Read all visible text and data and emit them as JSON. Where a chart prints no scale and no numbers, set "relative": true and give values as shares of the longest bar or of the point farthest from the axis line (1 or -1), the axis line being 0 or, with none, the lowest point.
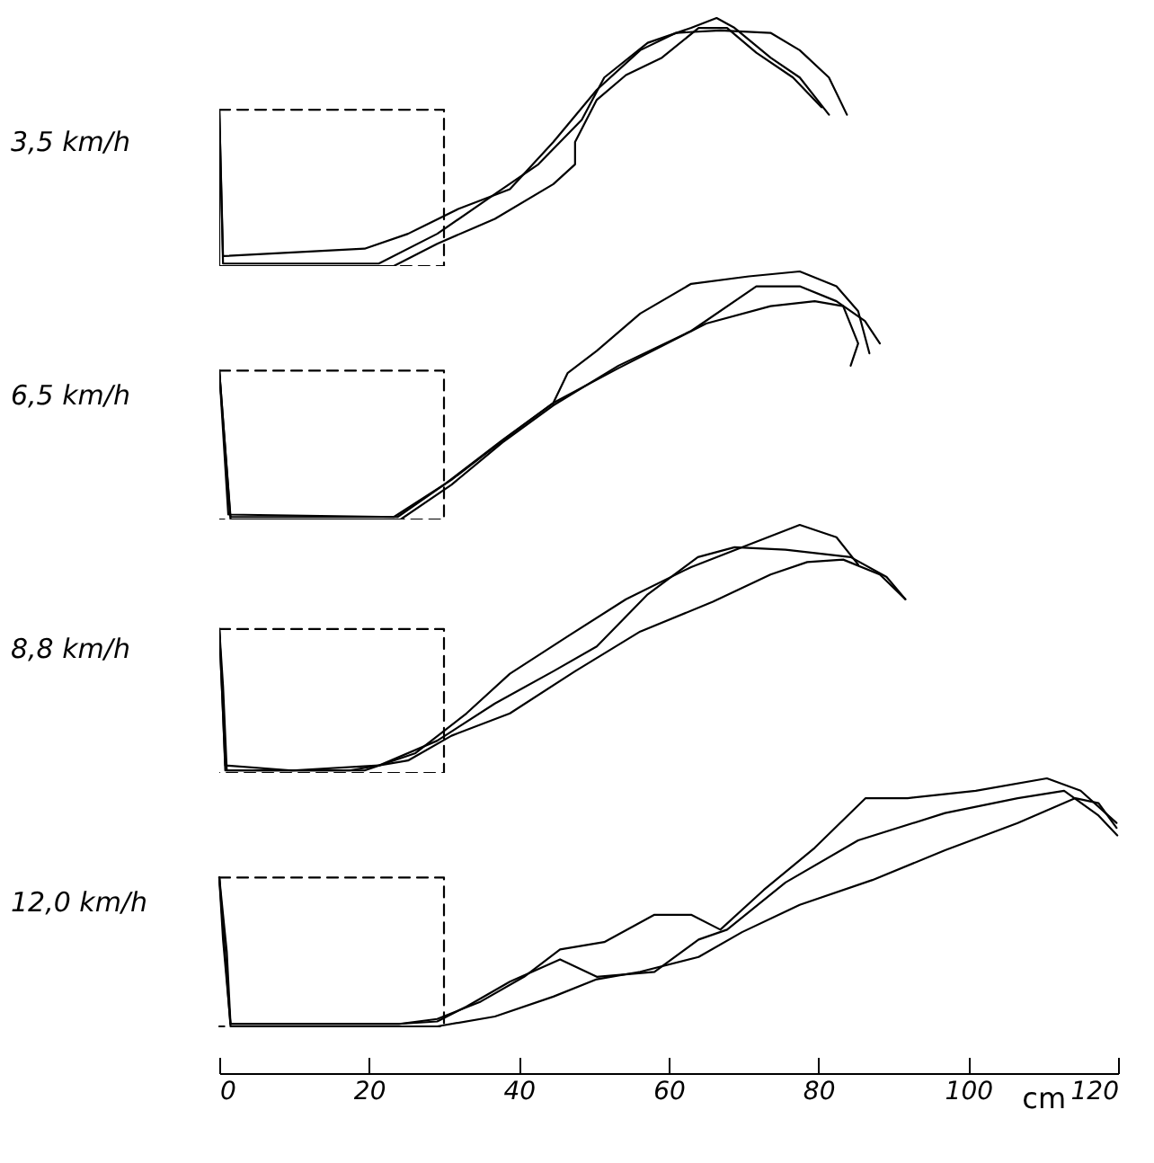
{
  "chart_data": [
    {
      "type": "line",
      "title": "3,5 km/h",
      "relative": true,
      "xlim": [
        0,
        120
      ],
      "xticks": [
        0,
        20,
        40,
        60,
        80,
        100,
        120
      ],
      "tick_labels": false,
      "series": [
        {
          "color": "#000000",
          "x": [
            0,
            0.5,
            21.3,
            29.1,
            36.8,
            42.6,
            48.4,
            51.4,
            57.2,
            63,
            66.4,
            68.8,
            73.6,
            77.5,
            81.4
          ],
          "values": [
            0.63,
            0.01,
            0.01,
            0.13,
            0.29,
            0.41,
            0.59,
            0.76,
            0.9,
            0.96,
            1,
            0.96,
            0.84,
            0.76,
            0.61
          ]
        },
        {
          "color": "#000000",
          "x": [
            0,
            0.5,
            19.4,
            25.2,
            31.9,
            38.8,
            44.6,
            50.4,
            56.2,
            61,
            66.9,
            73.6,
            77.5,
            81.4,
            83.8
          ],
          "values": [
            0.63,
            0.04,
            0.07,
            0.13,
            0.23,
            0.31,
            0.5,
            0.71,
            0.87,
            0.94,
            0.95,
            0.94,
            0.87,
            0.76,
            0.61
          ]
        },
        {
          "color": "#000000",
          "x": [
            0,
            0,
            23.3,
            29.1,
            36.8,
            44.6,
            47.5,
            47.5,
            50.4,
            54.3,
            59.1,
            64,
            67.8,
            71.7,
            76.6,
            80.4
          ],
          "values": [
            0.63,
            0,
            0,
            0.09,
            0.19,
            0.33,
            0.41,
            0.5,
            0.67,
            0.77,
            0.84,
            0.96,
            0.96,
            0.86,
            0.76,
            0.64
          ]
        },
        {
          "color": "#000000",
          "line_style": "dashed",
          "x": [
            0,
            30,
            30,
            0
          ],
          "values": [
            0.63,
            0.63,
            0,
            0
          ]
        }
      ]
    },
    {
      "type": "line",
      "title": "6,5 km/h",
      "relative": true,
      "xlim": [
        0,
        120
      ],
      "xticks": [
        0,
        20,
        40,
        60,
        80,
        100,
        120
      ],
      "tick_labels": false,
      "series": [
        {
          "color": "#000000",
          "x": [
            0,
            1.5,
            23.3,
            31,
            38.8,
            44.6,
            46.5,
            50.4,
            56.2,
            63,
            70.7,
            77.5,
            82.4,
            85.3,
            86.8
          ],
          "values": [
            0.6,
            0.01,
            0.01,
            0.16,
            0.34,
            0.47,
            0.59,
            0.68,
            0.83,
            0.95,
            0.98,
            1,
            0.94,
            0.84,
            0.67
          ]
        },
        {
          "color": "#000000",
          "x": [
            0,
            1.5,
            24.2,
            31,
            37.8,
            44.6,
            53.3,
            63,
            71.7,
            77.5,
            82.4,
            86.2,
            88.2
          ],
          "values": [
            0.6,
            0,
            0,
            0.14,
            0.31,
            0.46,
            0.62,
            0.76,
            0.94,
            0.94,
            0.88,
            0.8,
            0.71
          ]
        },
        {
          "color": "#000000",
          "x": [
            0,
            1.2,
            23.8,
            30,
            37.8,
            44.6,
            53.3,
            65,
            73.6,
            79.5,
            83.3,
            85.3,
            84.3
          ],
          "values": [
            0.6,
            0.02,
            0.01,
            0.14,
            0.32,
            0.47,
            0.61,
            0.79,
            0.86,
            0.88,
            0.86,
            0.71,
            0.62
          ]
        },
        {
          "color": "#000000",
          "line_style": "dashed",
          "x": [
            0,
            30,
            30,
            0
          ],
          "values": [
            0.6,
            0.6,
            0,
            0
          ]
        }
      ]
    },
    {
      "type": "line",
      "title": "8,8 km/h",
      "relative": true,
      "xlim": [
        0,
        120
      ],
      "xticks": [
        0,
        20,
        40,
        60,
        80,
        100,
        120
      ],
      "tick_labels": false,
      "series": [
        {
          "color": "#000000",
          "x": [
            0,
            0.5,
            0.8,
            19.4,
            26.2,
            33,
            38.8,
            46.5,
            54.3,
            63,
            70.7,
            77.5,
            82.4,
            85.3
          ],
          "values": [
            0.58,
            0.24,
            0.01,
            0.01,
            0.08,
            0.24,
            0.4,
            0.55,
            0.7,
            0.83,
            0.92,
            1,
            0.95,
            0.84
          ]
        },
        {
          "color": "#000000",
          "x": [
            0,
            0.8,
            9.7,
            21.3,
            29.1,
            36.8,
            44.6,
            50.4,
            57.2,
            63.9,
            68.8,
            75.6,
            84.3,
            89.1,
            91.6
          ],
          "values": [
            0.58,
            0.03,
            0.01,
            0.03,
            0.13,
            0.28,
            0.41,
            0.51,
            0.72,
            0.87,
            0.91,
            0.9,
            0.87,
            0.79,
            0.7
          ]
        },
        {
          "color": "#000000",
          "x": [
            0,
            0.5,
            1,
            17.4,
            25.2,
            31,
            38.8,
            47.5,
            56.2,
            65.9,
            73.6,
            78.5,
            83.3,
            88.2,
            91.6
          ],
          "values": [
            0.58,
            0.35,
            0.01,
            0.01,
            0.05,
            0.15,
            0.24,
            0.41,
            0.57,
            0.69,
            0.8,
            0.85,
            0.86,
            0.8,
            0.7
          ]
        },
        {
          "color": "#000000",
          "line_style": "dashed",
          "x": [
            0,
            30,
            30,
            0
          ],
          "values": [
            0.58,
            0.58,
            0,
            0
          ]
        }
      ]
    },
    {
      "type": "line",
      "title": "12,0 km/h",
      "relative": true,
      "xlim": [
        0,
        120
      ],
      "xticks": [
        0,
        20,
        40,
        60,
        80,
        100,
        120
      ],
      "tick_labels": "x",
      "xlabel": "cm",
      "series": [
        {
          "color": "#000000",
          "x": [
            0,
            0.5,
            1.5,
            24,
            29.1,
            34.9,
            40.7,
            45.5,
            51.4,
            58.1,
            63,
            66.9,
            72.7,
            79.5,
            86.3,
            91.9,
            101,
            110.5,
            115,
            119.8
          ],
          "values": [
            0.6,
            0.35,
            0.01,
            0.01,
            0.03,
            0.1,
            0.2,
            0.31,
            0.34,
            0.45,
            0.45,
            0.39,
            0.55,
            0.72,
            0.92,
            0.92,
            0.95,
            1,
            0.95,
            0.82
          ]
        },
        {
          "color": "#000000",
          "x": [
            0,
            1,
            1.5,
            24,
            29.1,
            33,
            38.8,
            45.5,
            50.4,
            58.1,
            64,
            67.8,
            75.6,
            85.3,
            96.9,
            106.6,
            112.8,
            117.4,
            119.9
          ],
          "values": [
            0.6,
            0.3,
            0.01,
            0.01,
            0.02,
            0.08,
            0.18,
            0.27,
            0.2,
            0.22,
            0.35,
            0.39,
            0.58,
            0.75,
            0.86,
            0.92,
            0.95,
            0.85,
            0.77
          ]
        },
        {
          "color": "#000000",
          "x": [
            0,
            1,
            1.5,
            24,
            29.1,
            36.8,
            44.6,
            50.4,
            56.2,
            64,
            69.8,
            77.5,
            87.2,
            96.9,
            106.6,
            114.3,
            117.4,
            119.8
          ],
          "values": [
            0.6,
            0.2,
            0,
            0,
            0,
            0.04,
            0.12,
            0.19,
            0.22,
            0.28,
            0.38,
            0.49,
            0.59,
            0.71,
            0.82,
            0.92,
            0.9,
            0.8
          ]
        },
        {
          "color": "#000000",
          "line_style": "dashed",
          "x": [
            0,
            30,
            30,
            0
          ],
          "values": [
            0.6,
            0.6,
            0,
            0
          ]
        }
      ]
    }
  ]
}
